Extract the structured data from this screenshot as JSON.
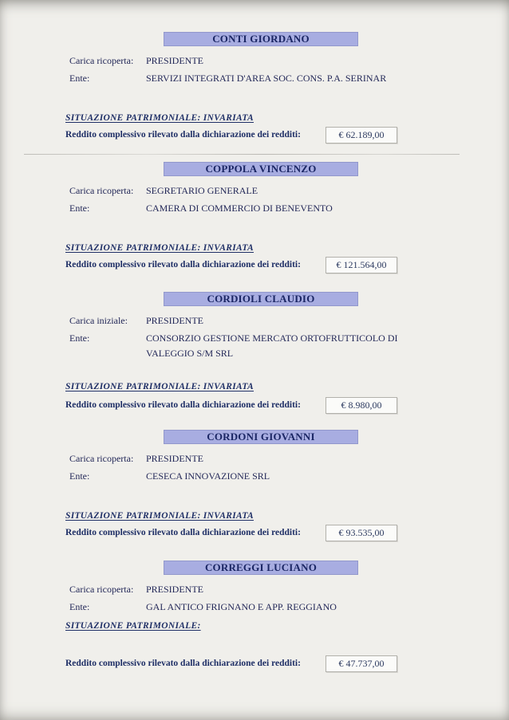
{
  "colors": {
    "page_bg": "#f0efeb",
    "banner_bg": "#a8ade1",
    "text_navy": "#232858",
    "heading_navy": "#1f2f66",
    "box_border": "#b2b1ab"
  },
  "sections": [
    {
      "name": "CONTI GIORDANO",
      "role_label": "Carica ricoperta:",
      "role_value": "PRESIDENTE",
      "ente_label": "Ente:",
      "ente_value": "SERVIZI INTEGRATI D'AREA SOC. CONS. P.A. SERINAR",
      "situazione": "SITUAZIONE PATRIMONIALE: INVARIATA",
      "reddito_label": "Reddito complessivo rilevato dalla dichiarazione dei redditi:",
      "reddito_value": "€ 62.189,00"
    },
    {
      "name": "COPPOLA VINCENZO",
      "role_label": "Carica ricoperta:",
      "role_value": "SEGRETARIO GENERALE",
      "ente_label": "Ente:",
      "ente_value": "CAMERA DI COMMERCIO DI BENEVENTO",
      "situazione": "SITUAZIONE PATRIMONIALE: INVARIATA",
      "reddito_label": "Reddito complessivo rilevato dalla dichiarazione dei redditi:",
      "reddito_value": "€ 121.564,00"
    },
    {
      "name": "CORDIOLI CLAUDIO",
      "role_label": "Carica iniziale:",
      "role_value": "PRESIDENTE",
      "ente_label": "Ente:",
      "ente_value": "CONSORZIO GESTIONE MERCATO ORTOFRUTTICOLO DI VALEGGIO S/M SRL",
      "situazione": "SITUAZIONE PATRIMONIALE: INVARIATA",
      "reddito_label": "Reddito complessivo rilevato dalla dichiarazione dei redditi:",
      "reddito_value": "€ 8.980,00"
    },
    {
      "name": "CORDONI GIOVANNI",
      "role_label": "Carica ricoperta:",
      "role_value": "PRESIDENTE",
      "ente_label": "Ente:",
      "ente_value": "CESECA INNOVAZIONE SRL",
      "situazione": "SITUAZIONE PATRIMONIALE: INVARIATA",
      "reddito_label": "Reddito complessivo rilevato dalla dichiarazione dei redditi:",
      "reddito_value": "€ 93.535,00"
    },
    {
      "name": "CORREGGI LUCIANO",
      "role_label": "Carica ricoperta:",
      "role_value": "PRESIDENTE",
      "ente_label": "Ente:",
      "ente_value": "GAL ANTICO FRIGNANO E APP. REGGIANO",
      "situazione": "SITUAZIONE PATRIMONIALE:",
      "reddito_label": "Reddito complessivo rilevato dalla dichiarazione dei redditi:",
      "reddito_value": "€ 47.737,00"
    }
  ]
}
